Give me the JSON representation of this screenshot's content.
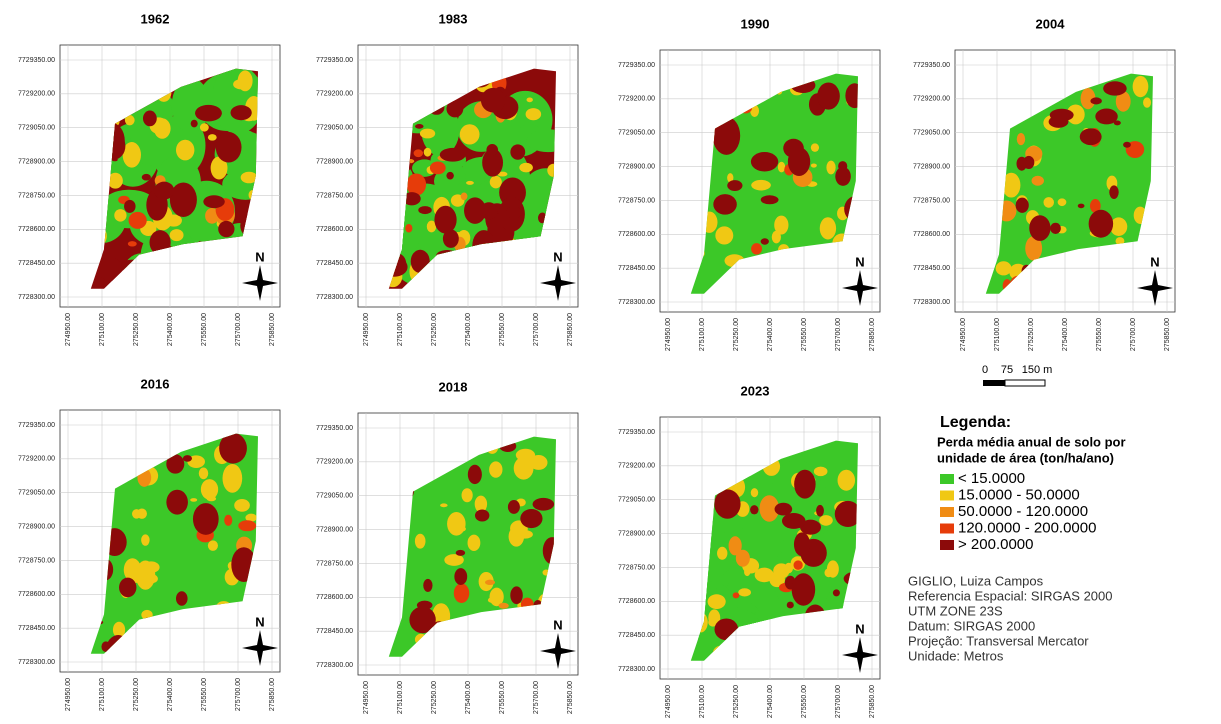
{
  "maps": [
    {
      "title": "1962"
    },
    {
      "title": "1983"
    },
    {
      "title": "1990"
    },
    {
      "title": "2004"
    },
    {
      "title": "2016"
    },
    {
      "title": "2018"
    },
    {
      "title": "2023"
    }
  ],
  "y_axis_labels": [
    "7729350.00",
    "7729200.00",
    "7729050.00",
    "7728900.00",
    "7728750.00",
    "7728600.00",
    "7728450.00",
    "7728300.00"
  ],
  "x_axis_labels": [
    "274950.00",
    "275100.00",
    "275250.00",
    "275400.00",
    "275550.00",
    "275700.00",
    "275850.00"
  ],
  "north_label": "N",
  "scale_bar": {
    "labels": [
      "0",
      "75",
      "150 m"
    ]
  },
  "legend": {
    "title": "Legenda:",
    "subtitle": [
      "Perda média anual de solo por",
      "unidade de área (ton/ha/ano)"
    ],
    "items": [
      {
        "label": "< 15.0000",
        "color": "#3cc828"
      },
      {
        "label": "15.0000 - 50.0000",
        "color": "#f0c814"
      },
      {
        "label": "50.0000 - 120.0000",
        "color": "#f08c14"
      },
      {
        "label": "120.0000 - 200.0000",
        "color": "#e63c0a"
      },
      {
        "label": "> 200.0000",
        "color": "#8c0a0a"
      }
    ]
  },
  "credits": [
    "GIGLIO, Luiza Campos",
    "Referencia Espacial: SIRGAS 2000",
    "UTM ZONE 23S",
    "Datum: SIRGAS 2000",
    "Projeção: Transversal Mercator",
    "Unidade: Metros"
  ]
}
